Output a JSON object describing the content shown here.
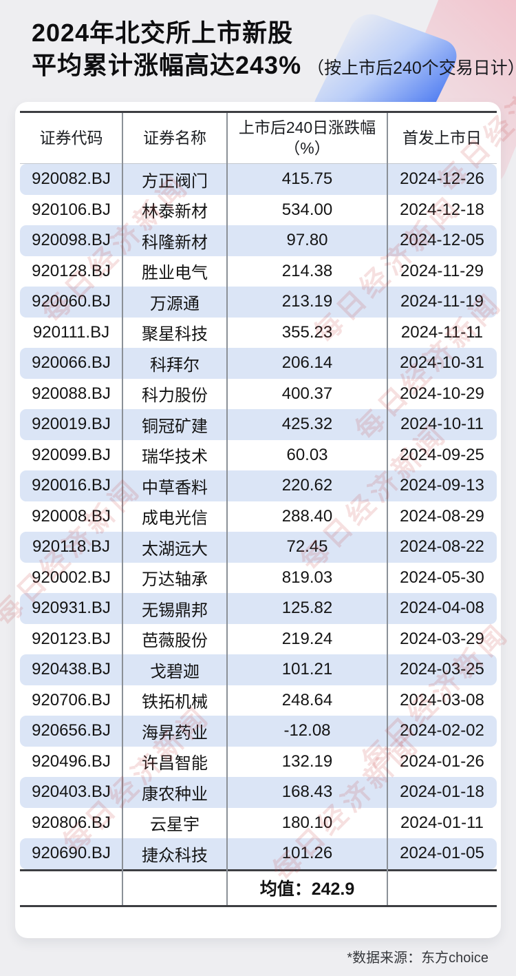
{
  "page": {
    "title_line1": "2024年北交所上市新股",
    "title_line2": "平均累计涨幅高达243%",
    "title_suffix": "（按上市后240个交易日计）",
    "watermark_text": "每日经济新闻",
    "footer_note": "*数据来源：东方choice"
  },
  "table": {
    "headers": {
      "code": "证券代码",
      "name": "证券名称",
      "change_line1": "上市后240日涨跌幅",
      "change_line2": "（%）",
      "date": "首发上市日"
    },
    "rows": [
      {
        "code": "920082.BJ",
        "name": "方正阀门",
        "change": "415.75",
        "date": "2024-12-26"
      },
      {
        "code": "920106.BJ",
        "name": "林泰新材",
        "change": "534.00",
        "date": "2024-12-18"
      },
      {
        "code": "920098.BJ",
        "name": "科隆新材",
        "change": "97.80",
        "date": "2024-12-05"
      },
      {
        "code": "920128.BJ",
        "name": "胜业电气",
        "change": "214.38",
        "date": "2024-11-29"
      },
      {
        "code": "920060.BJ",
        "name": "万源通",
        "change": "213.19",
        "date": "2024-11-19"
      },
      {
        "code": "920111.BJ",
        "name": "聚星科技",
        "change": "355.23",
        "date": "2024-11-11"
      },
      {
        "code": "920066.BJ",
        "name": "科拜尔",
        "change": "206.14",
        "date": "2024-10-31"
      },
      {
        "code": "920088.BJ",
        "name": "科力股份",
        "change": "400.37",
        "date": "2024-10-29"
      },
      {
        "code": "920019.BJ",
        "name": "铜冠矿建",
        "change": "425.32",
        "date": "2024-10-11"
      },
      {
        "code": "920099.BJ",
        "name": "瑞华技术",
        "change": "60.03",
        "date": "2024-09-25"
      },
      {
        "code": "920016.BJ",
        "name": "中草香料",
        "change": "220.62",
        "date": "2024-09-13"
      },
      {
        "code": "920008.BJ",
        "name": "成电光信",
        "change": "288.40",
        "date": "2024-08-29"
      },
      {
        "code": "920118.BJ",
        "name": "太湖远大",
        "change": "72.45",
        "date": "2024-08-22"
      },
      {
        "code": "920002.BJ",
        "name": "万达轴承",
        "change": "819.03",
        "date": "2024-05-30"
      },
      {
        "code": "920931.BJ",
        "name": "无锡鼎邦",
        "change": "125.82",
        "date": "2024-04-08"
      },
      {
        "code": "920123.BJ",
        "name": "芭薇股份",
        "change": "219.24",
        "date": "2024-03-29"
      },
      {
        "code": "920438.BJ",
        "name": "戈碧迦",
        "change": "101.21",
        "date": "2024-03-25"
      },
      {
        "code": "920706.BJ",
        "name": "铁拓机械",
        "change": "248.64",
        "date": "2024-03-08"
      },
      {
        "code": "920656.BJ",
        "name": "海昇药业",
        "change": "-12.08",
        "date": "2024-02-02"
      },
      {
        "code": "920496.BJ",
        "name": "许昌智能",
        "change": "132.19",
        "date": "2024-01-26"
      },
      {
        "code": "920403.BJ",
        "name": "康农种业",
        "change": "168.43",
        "date": "2024-01-18"
      },
      {
        "code": "920806.BJ",
        "name": "云星宇",
        "change": "180.10",
        "date": "2024-01-11"
      },
      {
        "code": "920690.BJ",
        "name": "捷众科技",
        "change": "101.26",
        "date": "2024-01-05"
      }
    ],
    "summary_text": "均值：242.9"
  },
  "colors": {
    "page_bg": "#eeeef1",
    "card_bg": "#ffffff",
    "stripe_blue": "#dbe5f6",
    "line_dark": "#3d3e42",
    "line_gray": "#8b9097",
    "watermark_red": "#c43c3c",
    "deco_blue": "#3a6cf0",
    "deco_pink": "#f2c0ca"
  },
  "chart_data": {
    "type": "table",
    "title": "2024年北交所上市新股平均累计涨幅高达243%（按上市后240个交易日计）",
    "columns": [
      "证券代码",
      "证券名称",
      "上市后240日涨跌幅（%）",
      "首发上市日"
    ],
    "rows": [
      [
        "920082.BJ",
        "方正阀门",
        415.75,
        "2024-12-26"
      ],
      [
        "920106.BJ",
        "林泰新材",
        534.0,
        "2024-12-18"
      ],
      [
        "920098.BJ",
        "科隆新材",
        97.8,
        "2024-12-05"
      ],
      [
        "920128.BJ",
        "胜业电气",
        214.38,
        "2024-11-29"
      ],
      [
        "920060.BJ",
        "万源通",
        213.19,
        "2024-11-19"
      ],
      [
        "920111.BJ",
        "聚星科技",
        355.23,
        "2024-11-11"
      ],
      [
        "920066.BJ",
        "科拜尔",
        206.14,
        "2024-10-31"
      ],
      [
        "920088.BJ",
        "科力股份",
        400.37,
        "2024-10-29"
      ],
      [
        "920019.BJ",
        "铜冠矿建",
        425.32,
        "2024-10-11"
      ],
      [
        "920099.BJ",
        "瑞华技术",
        60.03,
        "2024-09-25"
      ],
      [
        "920016.BJ",
        "中草香料",
        220.62,
        "2024-09-13"
      ],
      [
        "920008.BJ",
        "成电光信",
        288.4,
        "2024-08-29"
      ],
      [
        "920118.BJ",
        "太湖远大",
        72.45,
        "2024-08-22"
      ],
      [
        "920002.BJ",
        "万达轴承",
        819.03,
        "2024-05-30"
      ],
      [
        "920931.BJ",
        "无锡鼎邦",
        125.82,
        "2024-04-08"
      ],
      [
        "920123.BJ",
        "芭薇股份",
        219.24,
        "2024-03-29"
      ],
      [
        "920438.BJ",
        "戈碧迦",
        101.21,
        "2024-03-25"
      ],
      [
        "920706.BJ",
        "铁拓机械",
        248.64,
        "2024-03-08"
      ],
      [
        "920656.BJ",
        "海昇药业",
        -12.08,
        "2024-02-02"
      ],
      [
        "920496.BJ",
        "许昌智能",
        132.19,
        "2024-01-26"
      ],
      [
        "920403.BJ",
        "康农种业",
        168.43,
        "2024-01-18"
      ],
      [
        "920806.BJ",
        "云星宇",
        180.1,
        "2024-01-11"
      ],
      [
        "920690.BJ",
        "捷众科技",
        101.26,
        "2024-01-05"
      ]
    ],
    "summary": {
      "label": "均值",
      "value": 242.9
    },
    "source": "东方choice"
  }
}
